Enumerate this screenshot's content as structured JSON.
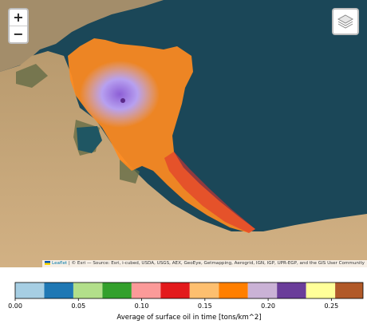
{
  "map": {
    "zoom_in_label": "+",
    "zoom_out_label": "−",
    "layers_icon": "layers-icon",
    "attribution_leaflet": "Leaflet",
    "attribution_rest": " | © Esri — Source: Esri, i-cubed, USDA, USGS, AEX, GeoEye, Getmapping, Aerogrid, IGN, IGP, UPR-EGP, and the GIS User Community"
  },
  "colors": {
    "sea": "#1b4758",
    "land": "#c9a77a",
    "spill_orange": "#ff8b1f",
    "spill_core": "#b7a0f0",
    "spill_edge": "#e0302f"
  },
  "chart_data": {
    "type": "heatmap",
    "colorbar_label": "Average of surface oil in time [tons/km^2]",
    "range": [
      0.0,
      0.275
    ],
    "ticks": [
      "0.00",
      "0.05",
      "0.10",
      "0.15",
      "0.20",
      "0.25"
    ],
    "tick_values": [
      0.0,
      0.05,
      0.1,
      0.15,
      0.2,
      0.25
    ],
    "bins": [
      {
        "from": 0.0,
        "to": 0.023,
        "color": "#a6cee3"
      },
      {
        "from": 0.023,
        "to": 0.046,
        "color": "#1f78b4"
      },
      {
        "from": 0.046,
        "to": 0.069,
        "color": "#b2df8a"
      },
      {
        "from": 0.069,
        "to": 0.092,
        "color": "#33a02c"
      },
      {
        "from": 0.092,
        "to": 0.115,
        "color": "#fb9a99"
      },
      {
        "from": 0.115,
        "to": 0.138,
        "color": "#e31a1c"
      },
      {
        "from": 0.138,
        "to": 0.161,
        "color": "#fdbf6f"
      },
      {
        "from": 0.161,
        "to": 0.184,
        "color": "#ff7f00"
      },
      {
        "from": 0.184,
        "to": 0.207,
        "color": "#cab2d6"
      },
      {
        "from": 0.207,
        "to": 0.23,
        "color": "#6a3d9a"
      },
      {
        "from": 0.23,
        "to": 0.253,
        "color": "#ffff99"
      },
      {
        "from": 0.253,
        "to": 0.275,
        "color": "#b15928"
      }
    ]
  }
}
